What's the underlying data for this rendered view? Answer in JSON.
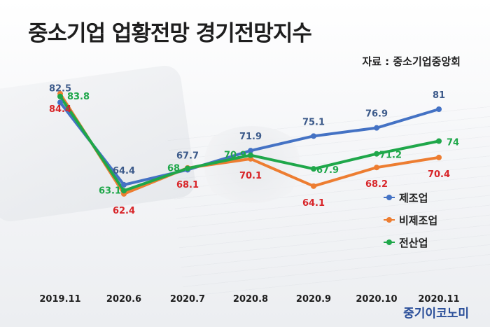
{
  "title": "중소기업 업황전망 경기전망지수",
  "source": "자료 : 중소기업중앙회",
  "brand": "중기이코노미",
  "chart_data": {
    "type": "line",
    "title": "중소기업 업황전망 경기전망지수",
    "categories": [
      "2019.11",
      "2020.6",
      "2020.7",
      "2020.8",
      "2020.9",
      "2020.10",
      "2020.11"
    ],
    "series": [
      {
        "name": "제조업",
        "color": "#4472c4",
        "values": [
          82.5,
          64.4,
          67.7,
          71.9,
          75.1,
          76.9,
          81
        ]
      },
      {
        "name": "비제조업",
        "color": "#ed7d31",
        "values": [
          84.4,
          62.4,
          68.1,
          70.1,
          64.1,
          68.2,
          70.4
        ]
      },
      {
        "name": "전산업",
        "color": "#1fa74a",
        "values": [
          83.8,
          63.1,
          68,
          70.9,
          67.9,
          71.2,
          74
        ]
      }
    ],
    "legend_position": "right",
    "grid": false
  }
}
